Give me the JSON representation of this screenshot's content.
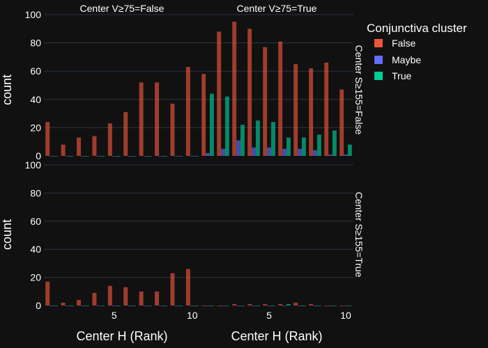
{
  "chart_data": {
    "type": "bar",
    "barmode": "group",
    "xlabel": "Center H (Rank)",
    "ylabel": "count",
    "ylim": [
      0,
      100
    ],
    "xlim": [
      0.5,
      10.5
    ],
    "x_ticks": [
      5,
      10
    ],
    "y_ticks": [
      0,
      20,
      40,
      60,
      80,
      100
    ],
    "grid": true,
    "column_titles": [
      "Center V≥75=False",
      "Center V≥75=True"
    ],
    "row_titles": [
      "Center S≥155=False",
      "Center S≥155=True"
    ],
    "legend": {
      "title": "Conjunctiva cluster",
      "placement": "top-right",
      "items": [
        {
          "name": "False",
          "color": "#EF553B"
        },
        {
          "name": "Maybe",
          "color": "#636EFA"
        },
        {
          "name": "True",
          "color": "#00CC96"
        }
      ]
    },
    "x": [
      1,
      2,
      3,
      4,
      5,
      6,
      7,
      8,
      9,
      10
    ],
    "panels": [
      {
        "row": 0,
        "col": 0,
        "series": [
          {
            "name": "False",
            "values": [
              24,
              8,
              13,
              14,
              23,
              31,
              52,
              52,
              37,
              63
            ]
          },
          {
            "name": "Maybe",
            "values": [
              0,
              0,
              0,
              0,
              0,
              0,
              0,
              0,
              0,
              0
            ]
          },
          {
            "name": "True",
            "values": [
              0,
              0,
              0,
              0,
              0,
              0,
              0,
              0,
              0,
              0
            ]
          }
        ]
      },
      {
        "row": 0,
        "col": 1,
        "series": [
          {
            "name": "False",
            "values": [
              58,
              88,
              95,
              90,
              77,
              81,
              65,
              62,
              66,
              47
            ]
          },
          {
            "name": "Maybe",
            "values": [
              2,
              5,
              11,
              6,
              6,
              5,
              5,
              4,
              1,
              1
            ]
          },
          {
            "name": "True",
            "values": [
              44,
              42,
              22,
              25,
              24,
              13,
              13,
              15,
              18,
              8
            ]
          }
        ]
      },
      {
        "row": 1,
        "col": 0,
        "series": [
          {
            "name": "False",
            "values": [
              17,
              2,
              4,
              9,
              14,
              13,
              10,
              10,
              23,
              26
            ]
          },
          {
            "name": "Maybe",
            "values": [
              0,
              0,
              0,
              0,
              0,
              0,
              0,
              0,
              0,
              0
            ]
          },
          {
            "name": "True",
            "values": [
              0,
              0,
              0,
              0,
              0,
              0,
              0,
              0,
              0,
              0
            ]
          }
        ]
      },
      {
        "row": 1,
        "col": 1,
        "series": [
          {
            "name": "False",
            "values": [
              0,
              0,
              1,
              1,
              1,
              1,
              2,
              1,
              0,
              0
            ]
          },
          {
            "name": "Maybe",
            "values": [
              0,
              0,
              0,
              0,
              0,
              0,
              0,
              0,
              0,
              0
            ]
          },
          {
            "name": "True",
            "values": [
              0,
              0,
              0,
              0,
              0,
              1,
              0,
              0,
              0,
              0
            ]
          }
        ]
      }
    ]
  }
}
